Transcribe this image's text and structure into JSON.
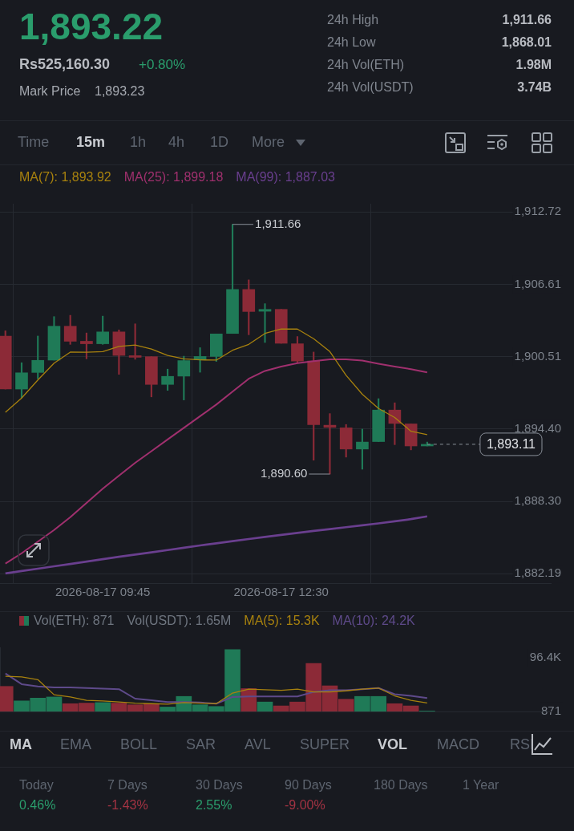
{
  "chart_data": [
    {
      "type": "candlestick",
      "title": "1,893.22",
      "x": [
        "2026-08-17T08:15",
        "2026-08-17T08:30",
        "2026-08-17T08:45",
        "2026-08-17T09:00",
        "2026-08-17T09:15",
        "2026-08-17T09:30",
        "2026-08-17T09:45",
        "2026-08-17T10:00",
        "2026-08-17T10:15",
        "2026-08-17T10:30",
        "2026-08-17T10:45",
        "2026-08-17T11:00",
        "2026-08-17T11:15",
        "2026-08-17T11:30",
        "2026-08-17T11:45",
        "2026-08-17T12:00",
        "2026-08-17T12:15",
        "2026-08-17T12:30",
        "2026-08-17T12:45",
        "2026-08-17T13:00",
        "2026-08-17T13:15",
        "2026-08-17T13:30",
        "2026-08-17T13:45",
        "2026-08-17T14:00",
        "2026-08-17T14:15",
        "2026-08-17T14:30",
        "2026-08-17T14:45"
      ],
      "ohlc": [
        [
          1902.24,
          1902.68,
          1897.77,
          1897.77
        ],
        [
          1897.77,
          1899.99,
          1897.05,
          1899.14
        ],
        [
          1899.17,
          1902.24,
          1898.64,
          1900.19
        ],
        [
          1900.21,
          1903.88,
          1900.21,
          1903.07
        ],
        [
          1903.07,
          1903.99,
          1901.54,
          1901.8
        ],
        [
          1901.8,
          1902.5,
          1900.32,
          1901.59
        ],
        [
          1901.59,
          1903.92,
          1901.54,
          1902.59
        ],
        [
          1902.59,
          1902.76,
          1899.01,
          1900.61
        ],
        [
          1900.58,
          1903.27,
          1900.28,
          1900.45
        ],
        [
          1900.5,
          1900.5,
          1897.11,
          1898.16
        ],
        [
          1898.16,
          1899.45,
          1897.66,
          1898.84
        ],
        [
          1898.86,
          1900.54,
          1896.85,
          1900.17
        ],
        [
          1900.24,
          1901.26,
          1899.19,
          1900.52
        ],
        [
          1900.52,
          1902.42,
          1900.1,
          1902.42
        ],
        [
          1902.46,
          1911.66,
          1902.46,
          1906.17
        ],
        [
          1906.17,
          1906.98,
          1902.35,
          1904.31
        ],
        [
          1904.33,
          1904.97,
          1901.7,
          1904.49
        ],
        [
          1904.49,
          1904.49,
          1901.63,
          1901.63
        ],
        [
          1901.59,
          1902.2,
          1899.95,
          1900.13
        ],
        [
          1900.13,
          1900.89,
          1891.77,
          1894.76
        ],
        [
          1894.72,
          1895.7,
          1890.6,
          1894.54
        ],
        [
          1894.5,
          1894.78,
          1892.03,
          1892.71
        ],
        [
          1892.71,
          1894.39,
          1891.01,
          1893.3
        ],
        [
          1893.34,
          1896.96,
          1893.34,
          1896.0
        ],
        [
          1896.0,
          1896.61,
          1893.08,
          1894.87
        ],
        [
          1894.83,
          1894.83,
          1892.64,
          1892.97
        ],
        [
          1892.97,
          1893.3,
          1892.97,
          1893.11
        ]
      ],
      "colors": [
        "#8c2a37",
        "#1f7a57",
        "#1f7a57",
        "#1f7a57",
        "#8c2a37",
        "#8c2a37",
        "#1f7a57",
        "#8c2a37",
        "#8c2a37",
        "#8c2a37",
        "#1f7a57",
        "#1f7a57",
        "#1f7a57",
        "#1f7a57",
        "#1f7a57",
        "#8c2a37",
        "#1f7a57",
        "#8c2a37",
        "#8c2a37",
        "#8c2a37",
        "#8c2a37",
        "#8c2a37",
        "#1f7a57",
        "#1f7a57",
        "#8c2a37",
        "#8c2a37",
        "#1f7a57"
      ],
      "series": [
        {
          "type": "line",
          "name": "MA(7): 1,893.92",
          "color": "#a8820e",
          "values": [
            1895.81,
            1897.01,
            1898.53,
            1899.95,
            1900.89,
            1900.87,
            1900.93,
            1901.37,
            1901.48,
            1901.15,
            1900.61,
            1900.32,
            1900.23,
            1900.21,
            1901.04,
            1901.54,
            1902.46,
            1902.83,
            1902.83,
            1902.02,
            1900.93,
            1898.93,
            1897.33,
            1896.13,
            1895.37,
            1894.21,
            1893.92
          ]
        },
        {
          "type": "line",
          "name": "MA(25): 1,899.18",
          "color": "#a0306e",
          "values": [
            1883.05,
            1883.92,
            1884.9,
            1885.88,
            1886.97,
            1888.17,
            1889.37,
            1890.46,
            1891.55,
            1892.53,
            1893.52,
            1894.5,
            1895.48,
            1896.46,
            1897.55,
            1898.64,
            1899.3,
            1899.67,
            1899.95,
            1900.13,
            1900.28,
            1900.28,
            1900.17,
            1899.91,
            1899.67,
            1899.45,
            1899.18
          ]
        },
        {
          "type": "line",
          "name": "MA(99): 1,887.03",
          "color": "#6a3f8f",
          "values": [
            1882.22,
            1882.42,
            1882.62,
            1882.82,
            1883.02,
            1883.22,
            1883.42,
            1883.62,
            1883.81,
            1884.0,
            1884.19,
            1884.39,
            1884.58,
            1884.76,
            1884.94,
            1885.12,
            1885.3,
            1885.47,
            1885.64,
            1885.8,
            1885.96,
            1886.12,
            1886.28,
            1886.44,
            1886.62,
            1886.8,
            1887.03
          ]
        }
      ],
      "xlim": [
        "2026-08-17T08:10",
        "2026-08-17T16:40"
      ],
      "xticks": [
        {
          "value": "2026-08-17T09:45",
          "label": "2026-08-17 09:45"
        },
        {
          "value": "2026-08-17T12:30",
          "label": "2026-08-17 12:30"
        }
      ],
      "ylim": [
        1881.4,
        1913.4
      ],
      "yticks": [
        {
          "value": 1912.72,
          "label": "1,912.72"
        },
        {
          "value": 1906.61,
          "label": "1,906.61"
        },
        {
          "value": 1900.51,
          "label": "1,900.51"
        },
        {
          "value": 1894.4,
          "label": "1,894.40"
        },
        {
          "value": 1888.3,
          "label": "1,888.30"
        },
        {
          "value": 1882.19,
          "label": "1,882.19"
        }
      ],
      "grid": true,
      "legend": "top left",
      "marker": "none",
      "ref_lines": [
        {
          "axis": "y",
          "value": 1893.11,
          "label": "1,893.11",
          "line_style": "dashed",
          "color": "#8a9099"
        }
      ],
      "annotations": [
        "Rs525,160.30",
        "+0.80%",
        "Mark Price",
        "1,893.23",
        "24h High",
        "1,911.66",
        "24h Low",
        "1,868.01",
        "24h Vol(ETH)",
        "1.98M",
        "24h Vol(USDT)",
        "3.74B",
        "Time",
        "15m",
        "1h",
        "4h",
        "1D",
        "More",
        {
          "text": "1,911.66",
          "x": "2026-08-17T11:45",
          "y": 1911.66
        },
        {
          "text": "1,890.60",
          "x": "2026-08-17T13:15",
          "y": 1890.6
        }
      ]
    },
    {
      "type": "bar",
      "x": [
        "2026-08-17T08:15",
        "2026-08-17T08:30",
        "2026-08-17T08:45",
        "2026-08-17T09:00",
        "2026-08-17T09:15",
        "2026-08-17T09:30",
        "2026-08-17T09:45",
        "2026-08-17T10:00",
        "2026-08-17T10:15",
        "2026-08-17T10:30",
        "2026-08-17T10:45",
        "2026-08-17T11:00",
        "2026-08-17T11:15",
        "2026-08-17T11:30",
        "2026-08-17T11:45",
        "2026-08-17T12:00",
        "2026-08-17T12:15",
        "2026-08-17T12:30",
        "2026-08-17T12:45",
        "2026-08-17T13:00",
        "2026-08-17T13:15",
        "2026-08-17T13:30",
        "2026-08-17T13:45",
        "2026-08-17T14:00",
        "2026-08-17T14:15",
        "2026-08-17T14:30",
        "2026-08-17T14:45"
      ],
      "series": [
        {
          "type": "bar",
          "name": "Vol(ETH): 871",
          "colors": [
            "#8c2a37",
            "#1f7a57",
            "#1f7a57",
            "#1f7a57",
            "#8c2a37",
            "#8c2a37",
            "#1f7a57",
            "#8c2a37",
            "#8c2a37",
            "#8c2a37",
            "#1f7a57",
            "#1f7a57",
            "#1f7a57",
            "#1f7a57",
            "#1f7a57",
            "#8c2a37",
            "#1f7a57",
            "#8c2a37",
            "#8c2a37",
            "#8c2a37",
            "#8c2a37",
            "#8c2a37",
            "#1f7a57",
            "#1f7a57",
            "#8c2a37",
            "#8c2a37",
            "#1f7a57"
          ],
          "values": [
            45000,
            19000,
            24000,
            26000,
            14000,
            15000,
            16000,
            15000,
            12000,
            14000,
            8000,
            27000,
            12000,
            9000,
            111000,
            41000,
            17000,
            10000,
            17000,
            86000,
            46000,
            22000,
            27000,
            27000,
            14000,
            10000,
            871
          ]
        },
        {
          "type": "line",
          "name": "MA(5): 15.3K",
          "color": "#a8820e",
          "values": [
            63000,
            62000,
            57000,
            30000,
            26000,
            20000,
            19000,
            17000,
            15000,
            14000,
            13000,
            16000,
            15000,
            14000,
            33000,
            40000,
            39000,
            38000,
            40000,
            35000,
            35000,
            37000,
            40000,
            42000,
            28000,
            20000,
            15300
          ]
        },
        {
          "type": "line",
          "name": "MA(10): 24.2K",
          "color": "#5e4a8a",
          "values": [
            68000,
            49000,
            45000,
            43000,
            43000,
            42000,
            41000,
            40000,
            23000,
            20000,
            17000,
            17000,
            16000,
            14000,
            26000,
            27000,
            27000,
            27000,
            27000,
            35000,
            38000,
            38000,
            40000,
            42000,
            31000,
            28000,
            24200
          ]
        }
      ],
      "xlim": [
        "2026-08-17T08:10",
        "2026-08-17T16:40"
      ],
      "xticks": [
        {
          "value": "2026-08-17T09:45",
          "label": null
        },
        {
          "value": "2026-08-17T12:30",
          "label": null
        }
      ],
      "ylim": [
        0,
        115000
      ],
      "yticks": [
        {
          "value": 96400,
          "label": "96.4K"
        },
        {
          "value": 871,
          "label": "871"
        }
      ],
      "grid": "x",
      "tick_labels": "y",
      "legend": "top left",
      "marker": "none",
      "annotations": [
        "Vol(USDT): 1.65M",
        "MA",
        "EMA",
        "BOLL",
        "SAR",
        "AVL",
        "SUPER",
        "VOL",
        "MACD",
        "RSI",
        "Today",
        "0.46%",
        "7 Days",
        "-1.43%",
        "30 Days",
        "2.55%",
        "90 Days",
        "-9.00%",
        "180 Days",
        "1 Year"
      ]
    }
  ]
}
